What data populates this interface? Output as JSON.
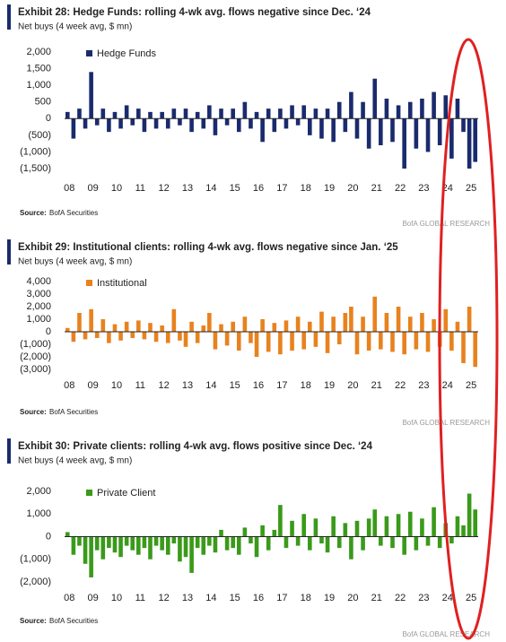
{
  "chart_data": [
    {
      "type": "bar",
      "title": "Exhibit 28: Hedge Funds: rolling 4-wk avg. flows negative since Dec. ‘24",
      "subtitle": "Net buys (4 week avg, $ mn)",
      "source_label": "Source:",
      "source": "BofA Securities",
      "watermark": "BofA GLOBAL RESEARCH",
      "categories": [
        "08",
        null,
        null,
        null,
        "09",
        null,
        null,
        null,
        "10",
        null,
        null,
        null,
        "11",
        null,
        null,
        null,
        "12",
        null,
        null,
        null,
        "13",
        null,
        null,
        null,
        "14",
        null,
        null,
        null,
        "15",
        null,
        null,
        null,
        "16",
        null,
        null,
        null,
        "17",
        null,
        null,
        null,
        "18",
        null,
        null,
        null,
        "19",
        null,
        null,
        null,
        "20",
        null,
        null,
        null,
        "21",
        null,
        null,
        null,
        "22",
        null,
        null,
        null,
        "23",
        null,
        null,
        null,
        "24",
        null,
        null,
        null,
        "25",
        null
      ],
      "series": [
        {
          "name": "Hedge Funds",
          "color": "#1a2b6d",
          "values": [
            200,
            -600,
            300,
            -300,
            1400,
            -200,
            300,
            -400,
            200,
            -300,
            400,
            -200,
            300,
            -400,
            200,
            -300,
            200,
            -300,
            300,
            -200,
            300,
            -400,
            200,
            -300,
            400,
            -500,
            300,
            -200,
            300,
            -400,
            500,
            -300,
            200,
            -700,
            300,
            -400,
            300,
            -300,
            400,
            -200,
            400,
            -500,
            300,
            -600,
            300,
            -700,
            500,
            -400,
            800,
            -600,
            500,
            -900,
            1200,
            -800,
            600,
            -700,
            400,
            -1500,
            500,
            -900,
            600,
            -1000,
            800,
            -800,
            700,
            -1200,
            600,
            -400,
            -1500,
            -1300
          ]
        }
      ],
      "ylim": [
        -1500,
        2000
      ],
      "yticks": [
        {
          "value": -1500,
          "label": "(1,500)"
        },
        {
          "value": -1000,
          "label": "(1,000)"
        },
        {
          "value": -500,
          "label": "(500)"
        },
        0,
        500,
        {
          "value": 1000,
          "label": "1,000"
        },
        {
          "value": 1500,
          "label": "1,500"
        },
        {
          "value": 2000,
          "label": "2,000"
        }
      ]
    },
    {
      "type": "bar",
      "title": "Exhibit 29: Institutional clients: rolling 4-wk avg. flows negative since Jan. ‘25",
      "subtitle": "Net buys (4 week avg, $ mn)",
      "source_label": "Source:",
      "source": "BofA Securities",
      "watermark": "BofA GLOBAL RESEARCH",
      "categories": [
        "08",
        null,
        null,
        null,
        "09",
        null,
        null,
        null,
        "10",
        null,
        null,
        null,
        "11",
        null,
        null,
        null,
        "12",
        null,
        null,
        null,
        "13",
        null,
        null,
        null,
        "14",
        null,
        null,
        null,
        "15",
        null,
        null,
        null,
        "16",
        null,
        null,
        null,
        "17",
        null,
        null,
        null,
        "18",
        null,
        null,
        null,
        "19",
        null,
        null,
        null,
        "20",
        null,
        null,
        null,
        "21",
        null,
        null,
        null,
        "22",
        null,
        null,
        null,
        "23",
        null,
        null,
        null,
        "24",
        null,
        null,
        null,
        "25",
        null
      ],
      "series": [
        {
          "name": "Institutional",
          "color": "#e8821e",
          "values": [
            300,
            -800,
            1500,
            -600,
            1800,
            -500,
            1000,
            -900,
            600,
            -700,
            800,
            -500,
            900,
            -600,
            700,
            -800,
            500,
            -900,
            1800,
            -700,
            -1200,
            800,
            -900,
            500,
            1500,
            -1400,
            600,
            -1100,
            800,
            -1500,
            1200,
            -900,
            -2000,
            1000,
            -1600,
            700,
            -1800,
            900,
            -1500,
            1200,
            -1400,
            800,
            -1200,
            1600,
            -1700,
            1200,
            -1000,
            1500,
            2000,
            -1800,
            1200,
            -1500,
            2800,
            -1400,
            1500,
            -1600,
            2000,
            -1800,
            1200,
            -1400,
            1500,
            -1600,
            1000,
            -1200,
            1800,
            -1500,
            800,
            -2500,
            2000,
            -2800
          ]
        }
      ],
      "ylim": [
        -3000,
        4000
      ],
      "yticks": [
        {
          "value": -3000,
          "label": "(3,000)"
        },
        {
          "value": -2000,
          "label": "(2,000)"
        },
        {
          "value": -1000,
          "label": "(1,000)"
        },
        0,
        {
          "value": 1000,
          "label": "1,000"
        },
        {
          "value": 2000,
          "label": "2,000"
        },
        {
          "value": 3000,
          "label": "3,000"
        },
        {
          "value": 4000,
          "label": "4,000"
        }
      ]
    },
    {
      "type": "bar",
      "title": "Exhibit 30: Private clients: rolling 4-wk avg. flows positive since Dec. ‘24",
      "subtitle": "Net buys (4 week avg, $ mn)",
      "source_label": "Source:",
      "source": "BofA Securities",
      "watermark": "BofA GLOBAL RESEARCH",
      "categories": [
        "08",
        null,
        null,
        null,
        "09",
        null,
        null,
        null,
        "10",
        null,
        null,
        null,
        "11",
        null,
        null,
        null,
        "12",
        null,
        null,
        null,
        "13",
        null,
        null,
        null,
        "14",
        null,
        null,
        null,
        "15",
        null,
        null,
        null,
        "16",
        null,
        null,
        null,
        "17",
        null,
        null,
        null,
        "18",
        null,
        null,
        null,
        "19",
        null,
        null,
        null,
        "20",
        null,
        null,
        null,
        "21",
        null,
        null,
        null,
        "22",
        null,
        null,
        null,
        "23",
        null,
        null,
        null,
        "24",
        null,
        null,
        null,
        "25",
        null
      ],
      "series": [
        {
          "name": "Private Client",
          "color": "#3a9a1a",
          "values": [
            200,
            -800,
            -400,
            -1200,
            -1800,
            -600,
            -1000,
            -500,
            -700,
            -900,
            -400,
            -600,
            -800,
            -500,
            -1000,
            -400,
            -600,
            -800,
            -300,
            -1100,
            -900,
            -1600,
            -500,
            -800,
            -400,
            -700,
            300,
            -600,
            -500,
            -800,
            400,
            -300,
            -900,
            500,
            -600,
            300,
            1400,
            -500,
            700,
            -400,
            1000,
            -600,
            800,
            -300,
            -700,
            900,
            -500,
            600,
            -1000,
            700,
            -600,
            800,
            1200,
            -400,
            900,
            -500,
            1000,
            -800,
            1100,
            -600,
            800,
            -400,
            1300,
            -500,
            600,
            -300,
            900,
            500,
            1900,
            1200
          ]
        }
      ],
      "ylim": [
        -2000,
        2000
      ],
      "yticks": [
        {
          "value": -2000,
          "label": "(2,000)"
        },
        {
          "value": -1000,
          "label": "(1,000)"
        },
        0,
        {
          "value": 1000,
          "label": "1,000"
        },
        {
          "value": 2000,
          "label": "2,000"
        }
      ]
    }
  ]
}
